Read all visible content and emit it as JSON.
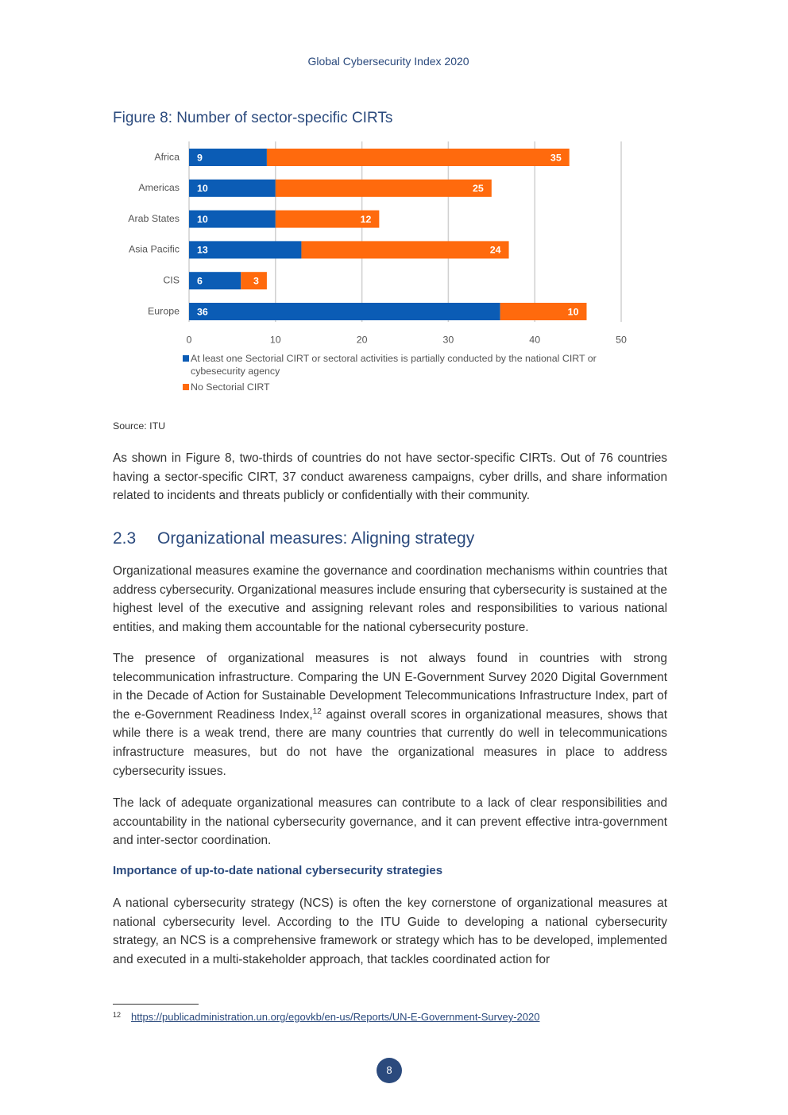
{
  "header": {
    "title": "Global Cybersecurity Index 2020"
  },
  "figure": {
    "title": "Figure 8: Number of sector-specific CIRTs",
    "source": "Source: ITU"
  },
  "chart_data": {
    "type": "bar",
    "orientation": "horizontal",
    "stacked": true,
    "categories": [
      "Africa",
      "Americas",
      "Arab States",
      "Asia Pacific",
      "CIS",
      "Europe"
    ],
    "series": [
      {
        "name": "At least one Sectorial CIRT or sectoral activities is partially conducted by the national CIRT or cybesecurity agency",
        "color": "#0b5cb5",
        "values": [
          9,
          10,
          10,
          13,
          6,
          36
        ]
      },
      {
        "name": "No Sectorial CIRT",
        "color": "#ff6a0d",
        "values": [
          35,
          25,
          12,
          24,
          3,
          10
        ]
      }
    ],
    "xlim": [
      0,
      50
    ],
    "xticks": [
      0,
      10,
      20,
      30,
      40,
      50
    ],
    "grid": true,
    "legend": "bottom"
  },
  "body": {
    "paragraph_1": "As shown in Figure 8, two-thirds of countries do not have sector-specific CIRTs. Out of 76 countries having a sector-specific CIRT, 37 conduct awareness campaigns, cyber drills, and share information related to incidents and threats publicly or confidentially with their community.",
    "section": {
      "number": "2.3",
      "title": "Organizational measures: Aligning strategy"
    },
    "paragraph_2": "Organizational measures examine the governance and coordination mechanisms within countries that address cybersecurity. Organizational measures include ensuring that cybersecurity is sustained at the highest level of the executive and assigning relevant roles and responsibilities to various national entities, and making them accountable for the national cybersecurity posture.",
    "paragraph_3": {
      "before": "The presence of organizational measures is not always found in countries with strong telecommunication infrastructure. Comparing the UN E-Government Survey 2020 Digital Government in the Decade of Action for Sustainable Development Telecommunications Infrastructure Index, part of the e-Government Readiness Index,",
      "footnote_ref": "12",
      "after": " against overall scores in organizational measures, shows that while there is a weak trend, there are many countries that currently do well in telecommunications infrastructure measures, but do not have the organizational measures in place to address cybersecurity issues."
    },
    "paragraph_4": "The lack of adequate organizational measures can contribute to a lack of clear responsibilities and accountability in the national cybersecurity governance, and it can prevent effective intra-government and inter-sector coordination.",
    "subheading": "Importance of up-to-date national cybersecurity strategies",
    "paragraph_5": "A national cybersecurity strategy (NCS) is often the key cornerstone of organizational measures at national cybersecurity level. According to the ITU Guide to developing a national cybersecurity strategy, an NCS is a comprehensive framework or strategy which has to be developed, implemented and executed in a multi-stakeholder approach, that tackles coordinated action for"
  },
  "footnote": {
    "number": "12",
    "url": "https://publicadministration.un.org/egovkb/en-us/Reports/UN-E-Government-Survey-2020"
  },
  "page_number": "8"
}
